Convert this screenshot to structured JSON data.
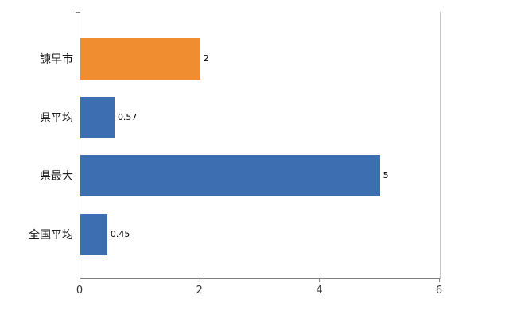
{
  "chart_data": {
    "type": "bar",
    "orientation": "horizontal",
    "title": "",
    "categories": [
      "諫早市",
      "県平均",
      "県最大",
      "全国平均"
    ],
    "values": [
      2,
      0.57,
      5,
      0.45
    ],
    "value_labels": [
      "2",
      "0.57",
      "5",
      "0.45"
    ],
    "bar_colors": [
      "#ef8d30",
      "#3d6eb2",
      "#3d6eb2",
      "#3d6eb2"
    ],
    "xlim": [
      0,
      6
    ],
    "x_ticks": [
      0,
      2,
      4,
      6
    ],
    "x_tick_labels": [
      "0",
      "2",
      "4",
      "6"
    ],
    "grid": false,
    "legend": false
  },
  "style": {
    "axis_color": "#808080",
    "plot_border_color": "#c6c6c6",
    "category_label_color": "#1a1a1a",
    "value_label_color": "#000000",
    "background": "#ffffff"
  }
}
